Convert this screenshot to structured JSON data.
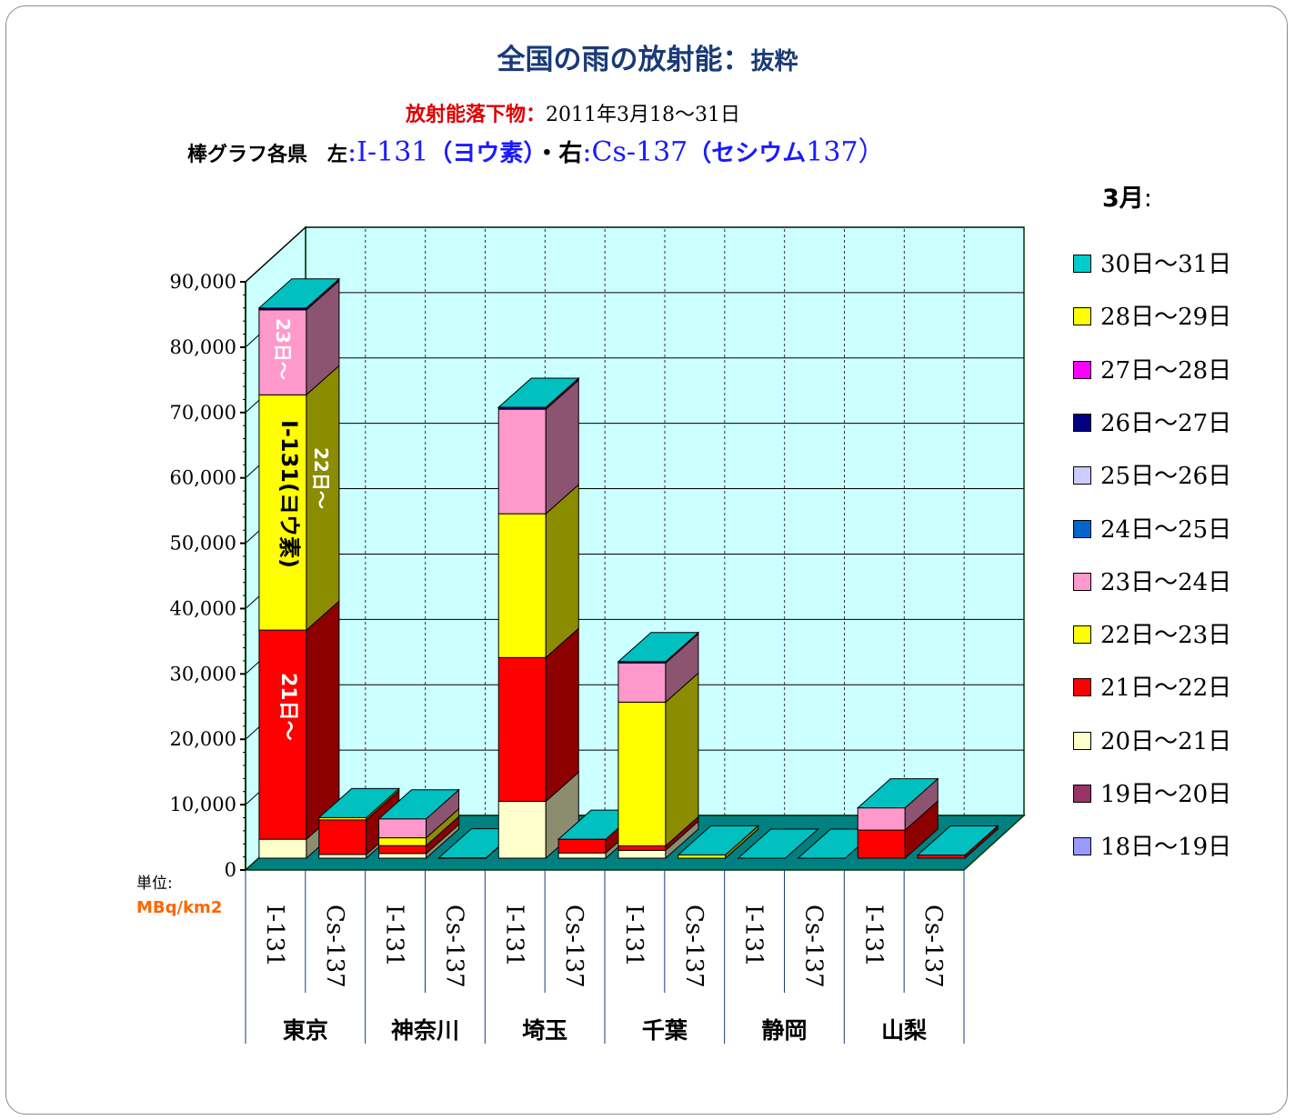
{
  "title": {
    "main": "全国の雨の放射能",
    "sep": "：",
    "suffix": "抜粋"
  },
  "subtitle1": {
    "label": "放射能落下物：",
    "period": "2011年3月18～31日"
  },
  "subtitle2": {
    "prefix": "棒グラフ各県　左",
    "colon1": ":",
    "left_item": "I-131",
    "left_paren": "（ヨウ素）",
    "dot": "・右",
    "colon2": ":",
    "right_item": "Cs-137",
    "right_paren": "（セシウム",
    "right_num": "137）"
  },
  "month_label": "3月",
  "month_colon": ":",
  "unit": {
    "label": "単位:",
    "value": "MBq/km2"
  },
  "colors": {
    "wall": "#ccffff",
    "floor": "#008080",
    "frame": "#003300"
  },
  "chart_data": {
    "type": "bar",
    "stacked": true,
    "three_d": true,
    "ylim": [
      0,
      90000
    ],
    "yticks": [
      "0",
      "10,000",
      "20,000",
      "30,000",
      "40,000",
      "50,000",
      "60,000",
      "70,000",
      "80,000",
      "90,000"
    ],
    "ytick_values": [
      0,
      10000,
      20000,
      30000,
      40000,
      50000,
      60000,
      70000,
      80000,
      90000
    ],
    "grid": true,
    "legend_position": "right",
    "prefectures": [
      "東京",
      "神奈川",
      "埼玉",
      "千葉",
      "静岡",
      "山梨"
    ],
    "categories": [
      "I-131",
      "Cs-137",
      "I-131",
      "Cs-137",
      "I-131",
      "Cs-137",
      "I-131",
      "Cs-137",
      "I-131",
      "Cs-137",
      "I-131",
      "Cs-137"
    ],
    "series": [
      {
        "name": "18日～19日",
        "color": "#9999ff",
        "values": [
          0,
          0,
          0,
          0,
          0,
          0,
          0,
          0,
          0,
          0,
          0,
          0
        ]
      },
      {
        "name": "19日～20日",
        "color": "#993366",
        "values": [
          0,
          0,
          0,
          0,
          0,
          0,
          0,
          0,
          0,
          0,
          0,
          0
        ]
      },
      {
        "name": "20日～21日",
        "color": "#ffffcc",
        "values": [
          2900,
          560,
          720,
          53,
          8700,
          800,
          1200,
          0,
          0,
          0,
          0,
          0
        ]
      },
      {
        "name": "21日～22日",
        "color": "#ff0000",
        "values": [
          32000,
          5300,
          1200,
          0,
          22000,
          2100,
          680,
          0,
          0,
          0,
          4300,
          480
        ]
      },
      {
        "name": "22日～23日",
        "color": "#ffff00",
        "values": [
          36000,
          340,
          1200,
          0,
          22000,
          0,
          22000,
          510,
          0,
          0,
          0,
          0
        ]
      },
      {
        "name": "23日～24日",
        "color": "#ff99cc",
        "values": [
          13000,
          0,
          2900,
          0,
          16000,
          0,
          6000,
          0,
          0,
          0,
          3400,
          0
        ]
      },
      {
        "name": "24日～25日",
        "color": "#0066cc",
        "values": [
          0,
          0,
          0,
          0,
          0,
          0,
          0,
          0,
          0,
          0,
          0,
          0
        ]
      },
      {
        "name": "25日～26日",
        "color": "#ccccff",
        "values": [
          0,
          0,
          0,
          0,
          0,
          0,
          0,
          0,
          0,
          0,
          0,
          0
        ]
      },
      {
        "name": "26日～27日",
        "color": "#000080",
        "values": [
          300,
          0,
          0,
          0,
          300,
          0,
          200,
          0,
          0,
          0,
          0,
          0
        ]
      },
      {
        "name": "27日～28日",
        "color": "#ff00ff",
        "values": [
          0,
          0,
          0,
          0,
          0,
          0,
          0,
          0,
          0,
          0,
          0,
          0
        ]
      },
      {
        "name": "28日～29日",
        "color": "#ffff00",
        "values": [
          0,
          0,
          0,
          0,
          0,
          0,
          0,
          0,
          0,
          0,
          0,
          0
        ]
      },
      {
        "name": "30日～31日",
        "color": "#00cccc",
        "values": [
          0,
          0,
          0,
          0,
          0,
          0,
          0,
          0,
          0,
          0,
          0,
          0
        ]
      }
    ],
    "annotations": [
      {
        "text": "23日～",
        "color": "#ffffff"
      },
      {
        "text": "I-131(ヨウ素)",
        "color": "#000000"
      },
      {
        "text": "22日～",
        "color": "#ffffff"
      },
      {
        "text": "21日～",
        "color": "#ffffff"
      }
    ]
  }
}
